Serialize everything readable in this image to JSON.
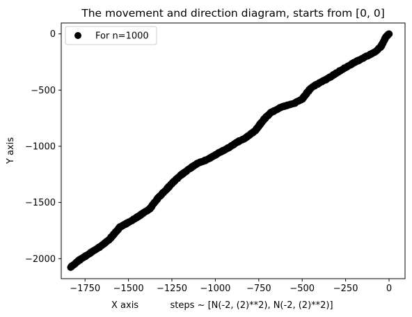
{
  "chart_data": {
    "type": "scatter",
    "title": "The movement and direction diagram, starts from [0, 0]",
    "xlabel": "X axis           steps ~ [N(-2, (2)**2), N(-2, (2)**2)]",
    "ylabel": "Y axis",
    "xlim": [
      -1887,
      92
    ],
    "ylim": [
      -2178,
      97
    ],
    "xticks": [
      -1750,
      -1500,
      -1250,
      -1000,
      -750,
      -500,
      -250,
      0
    ],
    "xtick_labels": [
      "−1750",
      "−1500",
      "−1250",
      "−1000",
      "−750",
      "−500",
      "−250",
      "0"
    ],
    "yticks": [
      0,
      -500,
      -1000,
      -1500,
      -2000
    ],
    "ytick_labels": [
      "0",
      "−500",
      "−1000",
      "−1500",
      "−2000"
    ],
    "grid": false,
    "legend_position": "top-left",
    "marker_color": "#000000",
    "series": [
      {
        "name": "For n=1000",
        "color": "#000000",
        "n": 1000,
        "path": [
          [
            0,
            0
          ],
          [
            -20,
            -30
          ],
          [
            -45,
            -110
          ],
          [
            -70,
            -150
          ],
          [
            -110,
            -185
          ],
          [
            -150,
            -215
          ],
          [
            -200,
            -255
          ],
          [
            -250,
            -300
          ],
          [
            -300,
            -345
          ],
          [
            -350,
            -395
          ],
          [
            -400,
            -435
          ],
          [
            -450,
            -480
          ],
          [
            -500,
            -580
          ],
          [
            -550,
            -620
          ],
          [
            -620,
            -650
          ],
          [
            -680,
            -700
          ],
          [
            -720,
            -760
          ],
          [
            -770,
            -860
          ],
          [
            -820,
            -920
          ],
          [
            -870,
            -960
          ],
          [
            -920,
            -1010
          ],
          [
            -980,
            -1060
          ],
          [
            -1050,
            -1120
          ],
          [
            -1100,
            -1150
          ],
          [
            -1150,
            -1200
          ],
          [
            -1200,
            -1260
          ],
          [
            -1230,
            -1300
          ],
          [
            -1280,
            -1380
          ],
          [
            -1330,
            -1460
          ],
          [
            -1380,
            -1560
          ],
          [
            -1430,
            -1610
          ],
          [
            -1480,
            -1660
          ],
          [
            -1550,
            -1720
          ],
          [
            -1610,
            -1830
          ],
          [
            -1660,
            -1890
          ],
          [
            -1720,
            -1950
          ],
          [
            -1780,
            -2010
          ],
          [
            -1833,
            -2076
          ]
        ]
      }
    ]
  }
}
